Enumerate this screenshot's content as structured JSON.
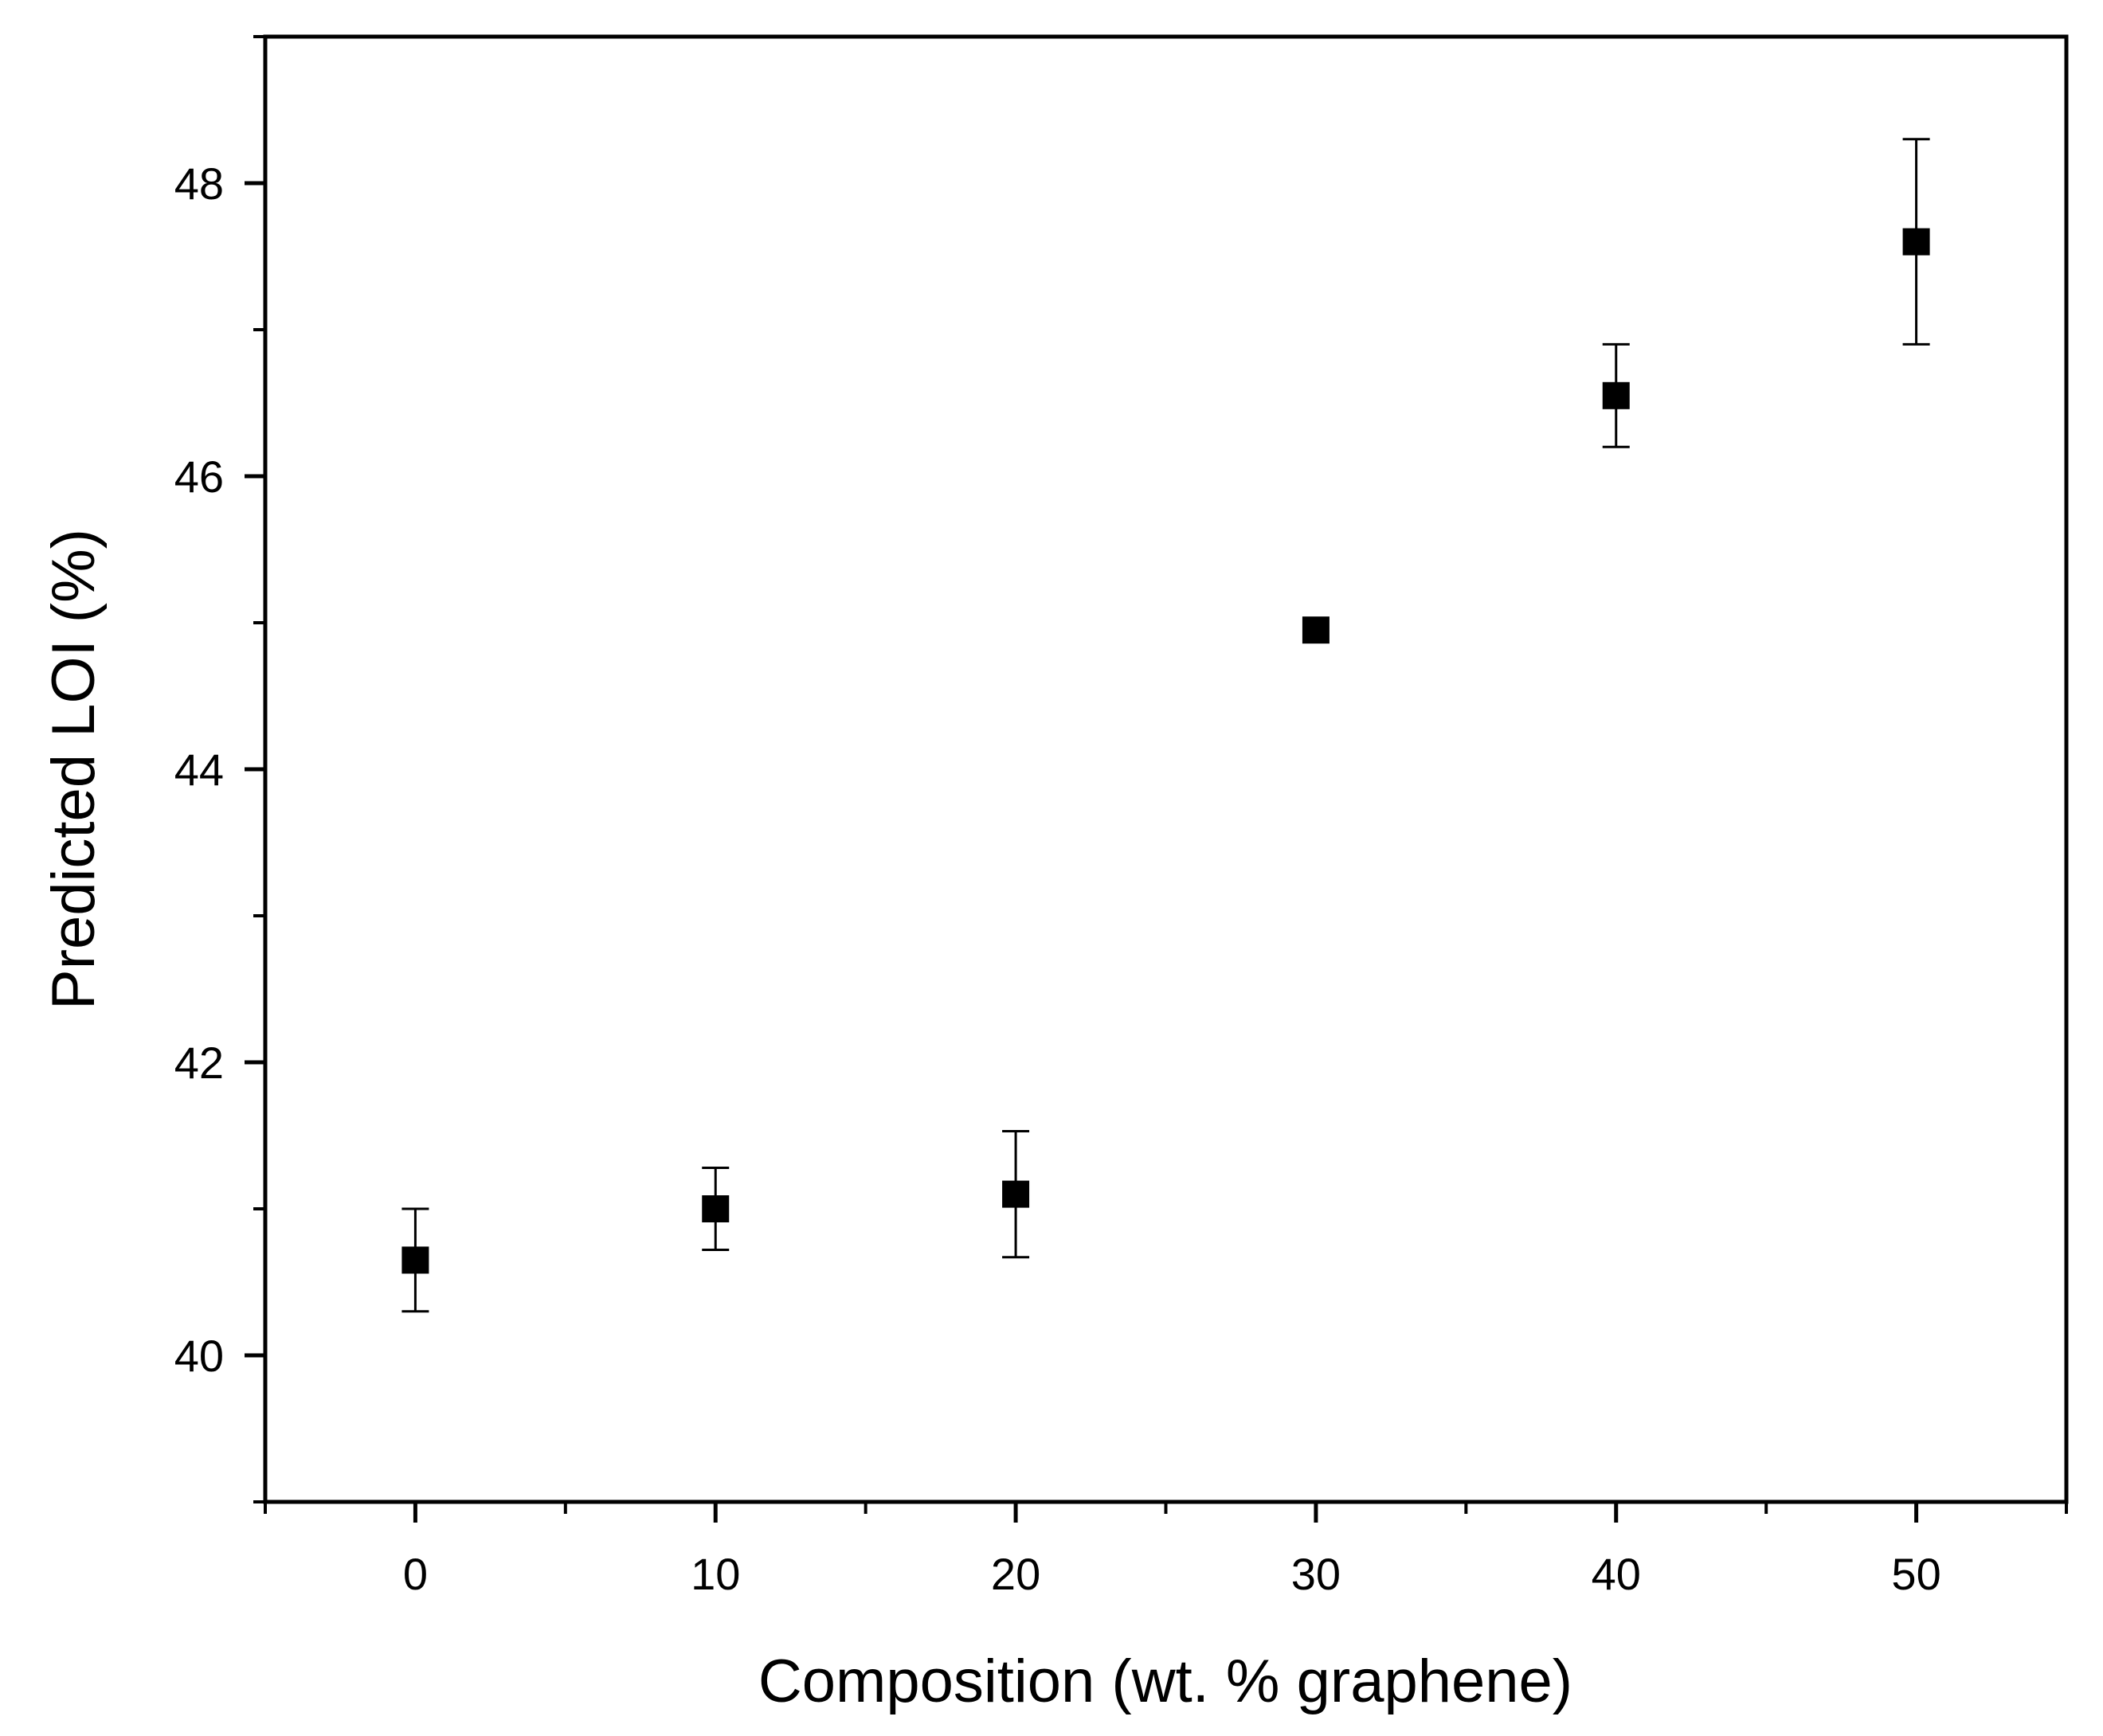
{
  "chart_data": {
    "type": "scatter",
    "title": "",
    "xlabel": "Composition (wt. % graphene)",
    "ylabel": "Predicted LOI (%)",
    "xlim": [
      -5,
      55
    ],
    "ylim": [
      39,
      49
    ],
    "x_ticks": [
      0,
      10,
      20,
      30,
      40,
      50
    ],
    "x_minor_ticks": [
      -5,
      5,
      15,
      25,
      35,
      45,
      55
    ],
    "y_ticks": [
      40,
      42,
      44,
      46,
      48
    ],
    "y_minor_ticks": [
      39,
      41,
      43,
      45,
      47,
      49
    ],
    "grid": false,
    "legend": "none",
    "marker": "filled-square",
    "color": "#000000",
    "series": [
      {
        "x": [
          0,
          10,
          20,
          30,
          40,
          50
        ],
        "y": [
          40.65,
          41.0,
          41.1,
          44.95,
          46.55,
          47.6
        ],
        "error": [
          0.35,
          0.28,
          0.43,
          0.0,
          0.35,
          0.7
        ]
      }
    ]
  }
}
